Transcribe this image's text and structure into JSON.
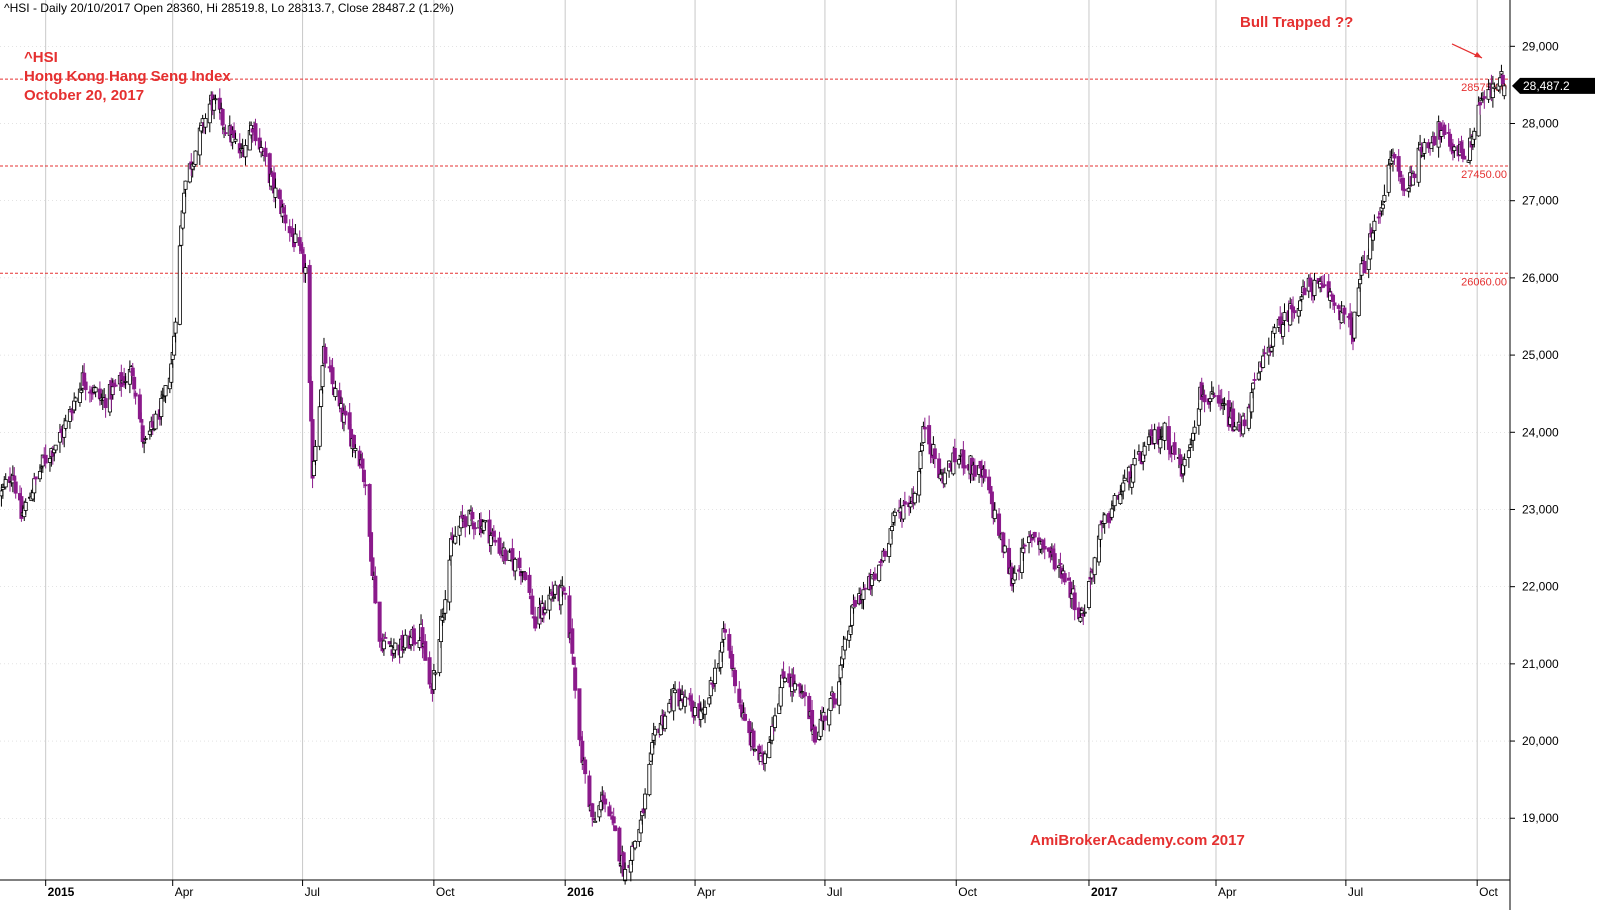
{
  "header": {
    "text": "^HSI - Daily 20/10/2017 Open 28360, Hi 28519.8, Lo 28313.7, Close 28487.2 (1.2%)"
  },
  "title_block": {
    "symbol": "^HSI",
    "name": "Hong Kong Hang Seng Index",
    "date": "October 20, 2017"
  },
  "annotation": {
    "text": "Bull Trapped ??"
  },
  "watermark": {
    "text": "AmiBrokerAcademy.com  2017"
  },
  "colors": {
    "down_candle": "#8b1a8b",
    "up_candle_body": "#ffffff",
    "up_candle_outline": "#000000",
    "hline": "#e53030",
    "grid": "#c8c8c8",
    "text_red": "#e53030"
  },
  "chart_data": {
    "type": "candlestick",
    "y_axis": {
      "side": "right",
      "ticks": [
        "19,000",
        "20,000",
        "21,000",
        "22,000",
        "23,000",
        "24,000",
        "25,000",
        "26,000",
        "27,000",
        "28,000",
        "29,000"
      ],
      "tick_values": [
        19000,
        20000,
        21000,
        22000,
        23000,
        24000,
        25000,
        26000,
        27000,
        28000,
        29000
      ],
      "range": [
        18200,
        29600
      ]
    },
    "x_axis": {
      "range": [
        "2014-12-01",
        "2017-10-24"
      ],
      "ticks": [
        {
          "date": "2015-01-02",
          "label": "2015",
          "bold": true
        },
        {
          "date": "2015-04-01",
          "label": "Apr",
          "bold": false
        },
        {
          "date": "2015-07-01",
          "label": "Jul",
          "bold": false
        },
        {
          "date": "2015-10-01",
          "label": "Oct",
          "bold": false
        },
        {
          "date": "2016-01-01",
          "label": "2016",
          "bold": true
        },
        {
          "date": "2016-04-01",
          "label": "Apr",
          "bold": false
        },
        {
          "date": "2016-07-01",
          "label": "Jul",
          "bold": false
        },
        {
          "date": "2016-10-01",
          "label": "Oct",
          "bold": false
        },
        {
          "date": "2017-01-02",
          "label": "2017",
          "bold": true
        },
        {
          "date": "2017-04-01",
          "label": "Apr",
          "bold": false
        },
        {
          "date": "2017-07-01",
          "label": "Jul",
          "bold": false
        },
        {
          "date": "2017-10-01",
          "label": "Oct",
          "bold": false
        }
      ]
    },
    "grid": true,
    "horizontal_lines": [
      {
        "value": 28575,
        "label": "28575.00"
      },
      {
        "value": 27450,
        "label": "27450.00"
      },
      {
        "value": 26060,
        "label": "26060.00"
      }
    ],
    "last_price": {
      "value": 28487.2,
      "label": "28,487.2"
    },
    "price_path": [
      [
        "2014-12-02",
        23200
      ],
      [
        "2014-12-10",
        23500
      ],
      [
        "2014-12-16",
        22900
      ],
      [
        "2014-12-31",
        23600
      ],
      [
        "2015-01-14",
        24000
      ],
      [
        "2015-01-28",
        24700
      ],
      [
        "2015-02-11",
        24400
      ],
      [
        "2015-03-04",
        24800
      ],
      [
        "2015-03-12",
        23800
      ],
      [
        "2015-03-26",
        24400
      ],
      [
        "2015-04-01",
        25000
      ],
      [
        "2015-04-09",
        27200
      ],
      [
        "2015-04-28",
        28300
      ],
      [
        "2015-05-19",
        27600
      ],
      [
        "2015-05-27",
        28000
      ],
      [
        "2015-06-12",
        27100
      ],
      [
        "2015-06-29",
        26300
      ],
      [
        "2015-07-03",
        26100
      ],
      [
        "2015-07-08",
        23500
      ],
      [
        "2015-07-16",
        25000
      ],
      [
        "2015-07-27",
        24300
      ],
      [
        "2015-08-12",
        23600
      ],
      [
        "2015-08-24",
        21300
      ],
      [
        "2015-09-07",
        21200
      ],
      [
        "2015-09-22",
        21400
      ],
      [
        "2015-09-29",
        20600
      ],
      [
        "2015-10-13",
        22500
      ],
      [
        "2015-10-22",
        22900
      ],
      [
        "2015-11-05",
        22800
      ],
      [
        "2015-11-20",
        22400
      ],
      [
        "2015-12-04",
        22200
      ],
      [
        "2015-12-11",
        21500
      ],
      [
        "2015-12-22",
        21900
      ],
      [
        "2015-12-31",
        21900
      ],
      [
        "2016-01-06",
        21200
      ],
      [
        "2016-01-12",
        19900
      ],
      [
        "2016-01-21",
        18900
      ],
      [
        "2016-01-28",
        19300
      ],
      [
        "2016-02-12",
        18300
      ],
      [
        "2016-02-24",
        19000
      ],
      [
        "2016-03-04",
        20100
      ],
      [
        "2016-03-18",
        20600
      ],
      [
        "2016-04-07",
        20300
      ],
      [
        "2016-04-22",
        21400
      ],
      [
        "2016-05-06",
        20200
      ],
      [
        "2016-05-18",
        19700
      ],
      [
        "2016-06-03",
        20900
      ],
      [
        "2016-06-17",
        20500
      ],
      [
        "2016-06-24",
        20100
      ],
      [
        "2016-07-08",
        20600
      ],
      [
        "2016-07-22",
        21800
      ],
      [
        "2016-08-05",
        22100
      ],
      [
        "2016-08-19",
        22900
      ],
      [
        "2016-09-02",
        23200
      ],
      [
        "2016-09-09",
        24100
      ],
      [
        "2016-09-20",
        23400
      ],
      [
        "2016-10-03",
        23700
      ],
      [
        "2016-10-21",
        23400
      ],
      [
        "2016-11-09",
        22100
      ],
      [
        "2016-11-24",
        22700
      ],
      [
        "2016-12-15",
        22200
      ],
      [
        "2016-12-28",
        21600
      ],
      [
        "2017-01-10",
        22700
      ],
      [
        "2017-01-26",
        23300
      ],
      [
        "2017-02-15",
        23900
      ],
      [
        "2017-02-24",
        24000
      ],
      [
        "2017-03-09",
        23500
      ],
      [
        "2017-03-21",
        24500
      ],
      [
        "2017-04-06",
        24300
      ],
      [
        "2017-04-18",
        24000
      ],
      [
        "2017-04-28",
        24600
      ],
      [
        "2017-05-10",
        25200
      ],
      [
        "2017-05-24",
        25600
      ],
      [
        "2017-06-06",
        25900
      ],
      [
        "2017-06-19",
        25800
      ],
      [
        "2017-06-30",
        25500
      ],
      [
        "2017-07-06",
        25300
      ],
      [
        "2017-07-11",
        26000
      ],
      [
        "2017-07-25",
        26900
      ],
      [
        "2017-08-03",
        27600
      ],
      [
        "2017-08-11",
        27100
      ],
      [
        "2017-08-24",
        27700
      ],
      [
        "2017-09-04",
        27900
      ],
      [
        "2017-09-14",
        27700
      ],
      [
        "2017-09-25",
        27600
      ],
      [
        "2017-10-03",
        28300
      ],
      [
        "2017-10-11",
        28400
      ],
      [
        "2017-10-17",
        28600
      ],
      [
        "2017-10-20",
        28487.2
      ]
    ]
  }
}
